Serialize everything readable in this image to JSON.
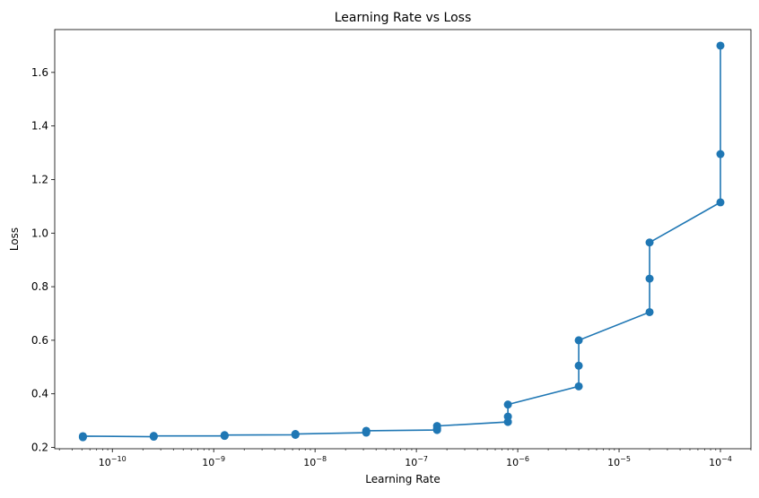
{
  "chart_data": {
    "type": "line",
    "title": "Learning Rate vs Loss",
    "xlabel": "Learning Rate",
    "ylabel": "Loss",
    "xscale": "log",
    "xlim": [
      2.7e-11,
      0.0002
    ],
    "ylim": [
      0.195,
      1.76
    ],
    "grid": false,
    "line_color": "#1f77b4",
    "marker": "circle",
    "x_ticks": [
      {
        "value": 1e-10,
        "base": "10",
        "exp": "−10"
      },
      {
        "value": 1e-09,
        "base": "10",
        "exp": "−9"
      },
      {
        "value": 1e-08,
        "base": "10",
        "exp": "−8"
      },
      {
        "value": 1e-07,
        "base": "10",
        "exp": "−7"
      },
      {
        "value": 1e-06,
        "base": "10",
        "exp": "−6"
      },
      {
        "value": 1e-05,
        "base": "10",
        "exp": "−5"
      },
      {
        "value": 0.0001,
        "base": "10",
        "exp": "−4"
      }
    ],
    "y_ticks": [
      "0.2",
      "0.4",
      "0.6",
      "0.8",
      "1.0",
      "1.2",
      "1.4",
      "1.6"
    ],
    "series": [
      {
        "points": [
          [
            0.0001,
            1.7
          ],
          [
            0.0001,
            1.295
          ],
          [
            0.0001,
            1.115
          ],
          [
            2e-05,
            0.965
          ],
          [
            2e-05,
            0.83
          ],
          [
            2e-05,
            0.705
          ],
          [
            4e-06,
            0.6
          ],
          [
            4e-06,
            0.505
          ],
          [
            4e-06,
            0.428
          ],
          [
            8e-07,
            0.36
          ],
          [
            8e-07,
            0.315
          ],
          [
            8e-07,
            0.295
          ],
          [
            1.6e-07,
            0.28
          ],
          [
            1.6e-07,
            0.27
          ],
          [
            1.6e-07,
            0.265
          ],
          [
            3.2e-08,
            0.262
          ],
          [
            3.2e-08,
            0.258
          ],
          [
            3.2e-08,
            0.255
          ],
          [
            6.4e-09,
            0.25
          ],
          [
            6.4e-09,
            0.248
          ],
          [
            6.4e-09,
            0.247
          ],
          [
            1.28e-09,
            0.246
          ],
          [
            1.28e-09,
            0.244
          ],
          [
            1.28e-09,
            0.243
          ],
          [
            2.56e-10,
            0.243
          ],
          [
            2.56e-10,
            0.241
          ],
          [
            2.56e-10,
            0.24
          ],
          [
            5.12e-11,
            0.242
          ],
          [
            5.12e-11,
            0.24
          ],
          [
            5.12e-11,
            0.238
          ]
        ]
      }
    ]
  }
}
